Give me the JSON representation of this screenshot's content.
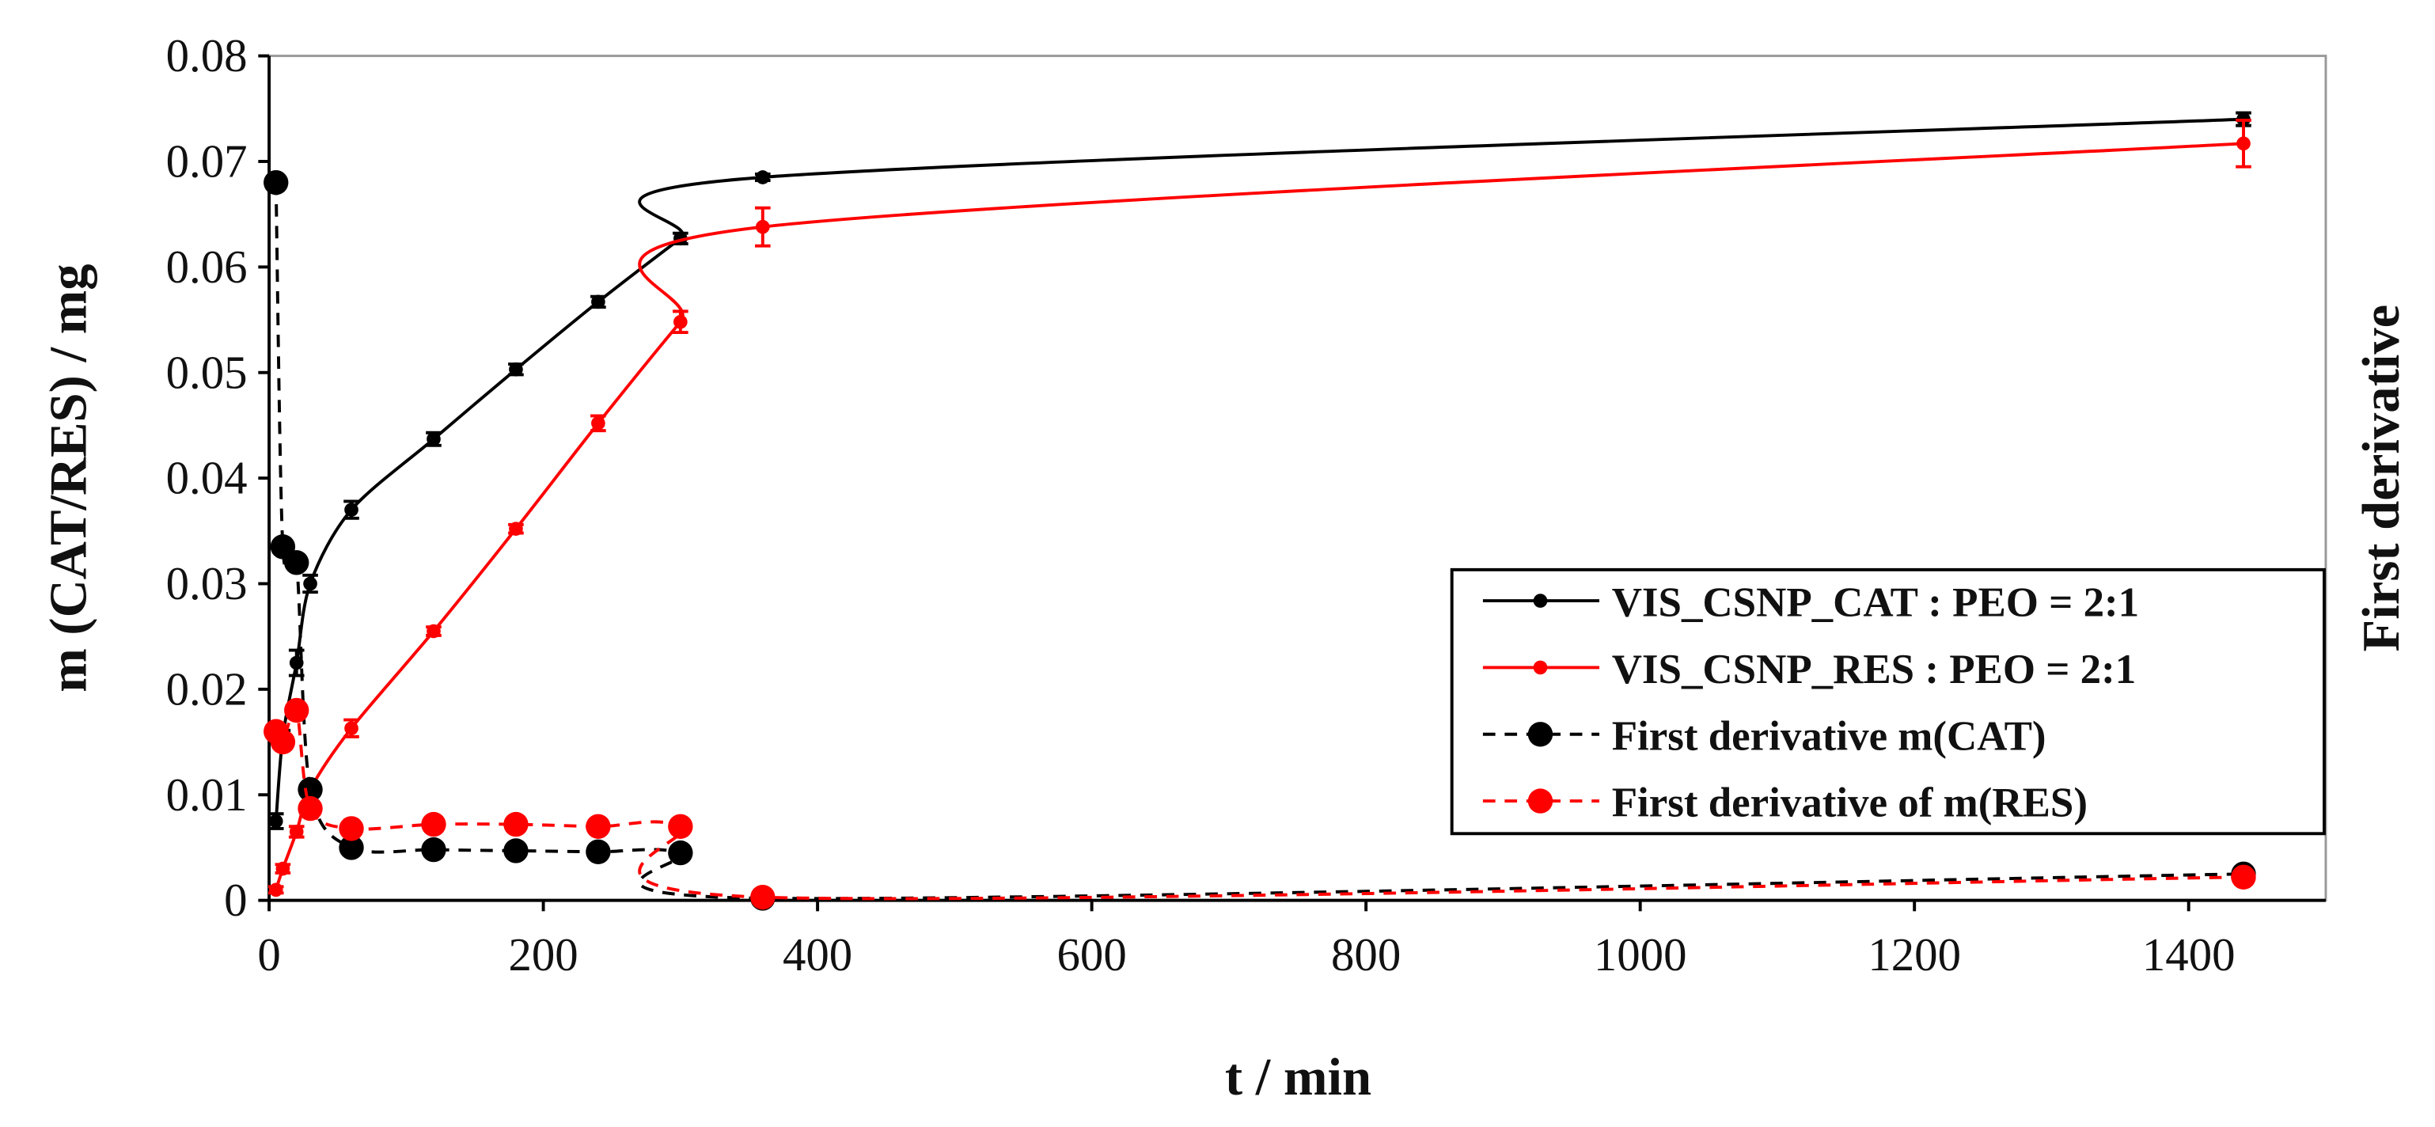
{
  "chart_data": {
    "type": "line",
    "xlabel": "t / min",
    "ylabel": "m (CAT/RES) / mg",
    "y2label": "First derivative",
    "x": [
      5,
      10,
      20,
      30,
      60,
      120,
      180,
      240,
      300,
      360,
      1440
    ],
    "xlim": [
      0,
      1500
    ],
    "xticks": [
      0,
      200,
      400,
      600,
      800,
      1000,
      1200,
      1400
    ],
    "ylim": [
      0,
      0.08
    ],
    "yticks": [
      0,
      0.01,
      0.02,
      0.03,
      0.04,
      0.05,
      0.06,
      0.07,
      0.08
    ],
    "legend": "right",
    "series": [
      {
        "name": "VIS_CSNP_CAT : PEO = 2:1",
        "color": "#000000",
        "dashed": false,
        "marker": "small",
        "values": [
          0.0075,
          0.0155,
          0.0225,
          0.03,
          0.037,
          0.0437,
          0.0503,
          0.0567,
          0.0627,
          0.0685,
          0.074
        ],
        "errors": [
          0.0007,
          0.0006,
          0.0012,
          0.0008,
          0.0008,
          0.0006,
          0.0005,
          0.0005,
          0.0005,
          0.0003,
          0.0006
        ]
      },
      {
        "name": "VIS_CSNP_RES : PEO = 2:1",
        "color": "#ff0000",
        "dashed": false,
        "marker": "small",
        "values": [
          0.001,
          0.003,
          0.0065,
          0.0105,
          0.0163,
          0.0255,
          0.0352,
          0.0452,
          0.0548,
          0.0638,
          0.0717
        ],
        "errors": [
          0.0003,
          0.0004,
          0.0005,
          0.0006,
          0.0008,
          0.0004,
          0.0004,
          0.0007,
          0.001,
          0.0018,
          0.0022
        ]
      },
      {
        "name": "First derivative m(CAT)",
        "color": "#000000",
        "dashed": true,
        "marker": "large",
        "values": [
          0.068,
          0.0335,
          0.032,
          0.0105,
          0.005,
          0.0048,
          0.0047,
          0.0046,
          0.0045,
          0.0002,
          0.0025
        ]
      },
      {
        "name": "First derivative of m(RES)",
        "color": "#ff0000",
        "dashed": true,
        "marker": "large",
        "values": [
          0.016,
          0.015,
          0.018,
          0.0087,
          0.0068,
          0.0072,
          0.0072,
          0.007,
          0.007,
          0.0003,
          0.0022
        ]
      }
    ]
  }
}
